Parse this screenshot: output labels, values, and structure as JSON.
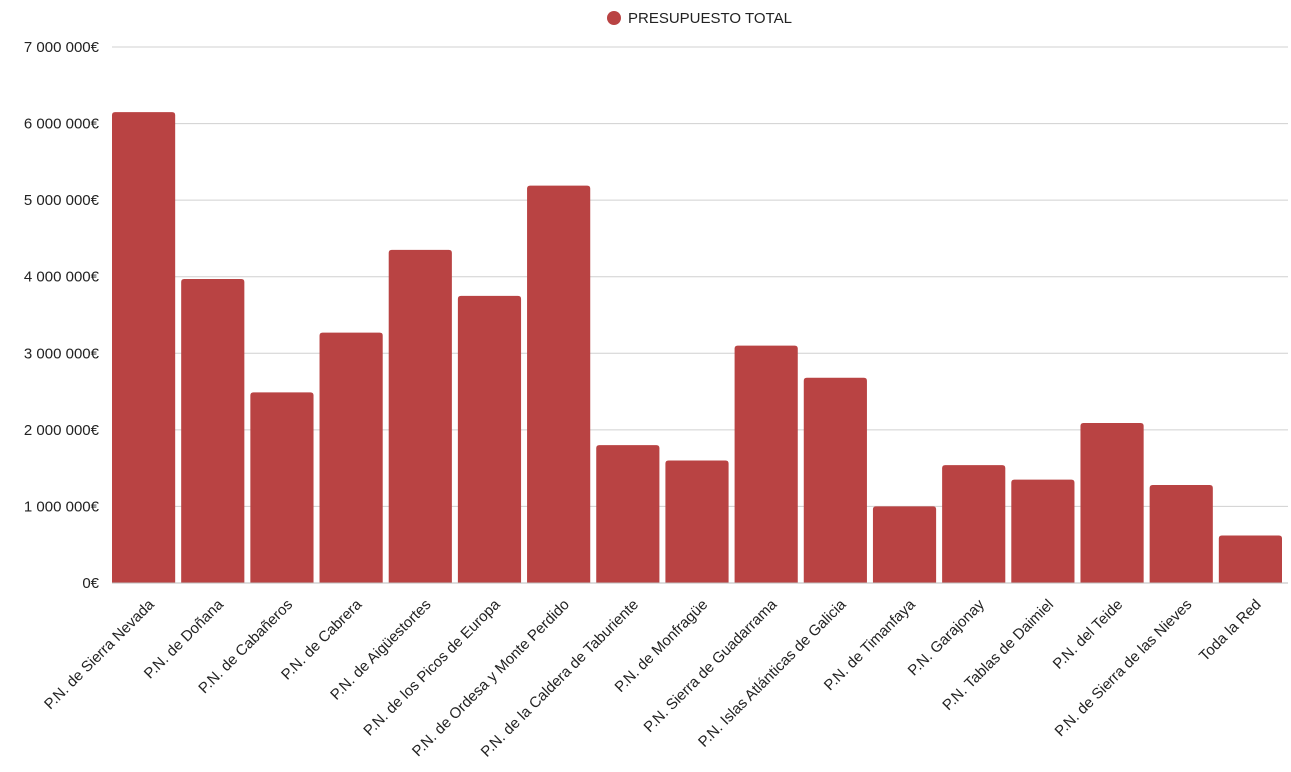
{
  "chart_data": {
    "type": "bar",
    "title": "",
    "xlabel": "",
    "ylabel": "",
    "color": "#b94343",
    "legend": {
      "position": "top-center",
      "marker": "circle"
    },
    "grid": true,
    "ylim": [
      0,
      7000000
    ],
    "y_ticks": [
      {
        "value": 0,
        "label": "0€"
      },
      {
        "value": 1000000,
        "label": "1 000 000€"
      },
      {
        "value": 2000000,
        "label": "2 000 000€"
      },
      {
        "value": 3000000,
        "label": "3 000 000€"
      },
      {
        "value": 4000000,
        "label": "4 000 000€"
      },
      {
        "value": 5000000,
        "label": "5 000 000€"
      },
      {
        "value": 6000000,
        "label": "6 000 000€"
      },
      {
        "value": 7000000,
        "label": "7 000 000€"
      }
    ],
    "categories": [
      "P.N. de Sierra Nevada",
      "P.N. de Doñana",
      "P.N. de Cabañeros",
      "P.N. de Cabrera",
      "P.N. de Aigüestortes",
      "P.N. de los Picos de Europa",
      "P.N. de Ordesa y Monte Perdido",
      "P.N. de la Caldera de Taburiente",
      "P.N. de Monfragüe",
      "P.N. Sierra de Guadarrama",
      "P.N. Islas Atlánticas de Galicia",
      "P.N. de Timanfaya",
      "P.N. Garajonay",
      "P.N. Tablas de Daimiel",
      "P.N. del Teide",
      "P.N. de Sierra de las Nieves",
      "Toda la Red"
    ],
    "series": [
      {
        "name": "PRESUPUESTO TOTAL",
        "values": [
          6150000,
          3970000,
          2490000,
          3270000,
          4350000,
          3750000,
          5190000,
          1800000,
          1600000,
          3100000,
          2680000,
          1000000,
          1540000,
          1350000,
          2090000,
          1280000,
          620000
        ]
      }
    ]
  }
}
